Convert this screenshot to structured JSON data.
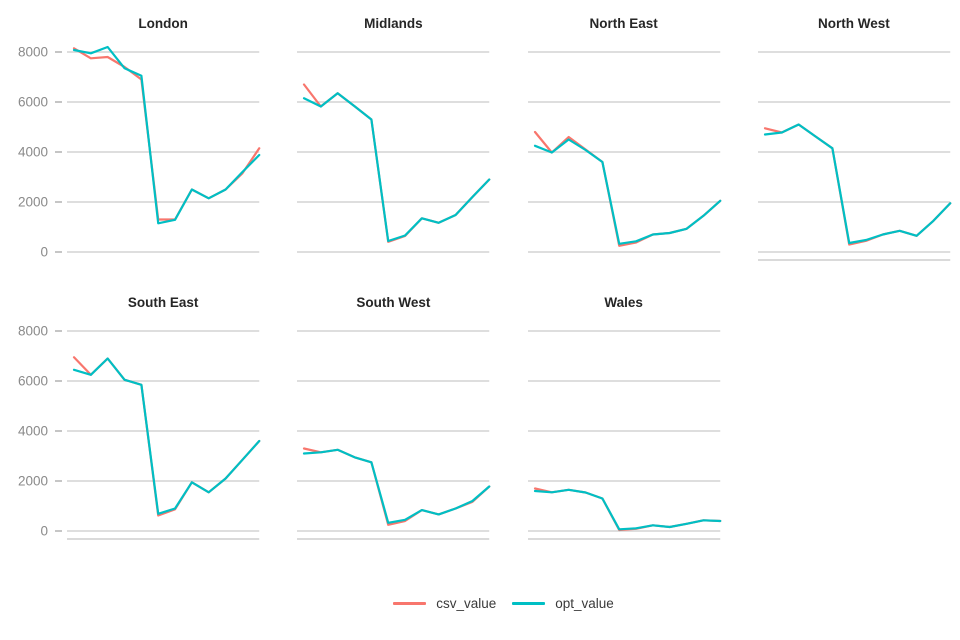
{
  "colors": {
    "background": "#ffffff",
    "grid": "#d9d9d9",
    "axis_line": "#d4d4d4",
    "tick": "#bfbfbf",
    "axis_label": "#8a8a8a",
    "title": "#262626",
    "legend_text": "#3a3a3a",
    "series": {
      "csv_value": "#F8766D",
      "opt_value": "#00BFC4"
    }
  },
  "y_axis": {
    "tick_labels": [
      "8000",
      "6000",
      "4000",
      "2000",
      "0"
    ],
    "tick_values": [
      8000,
      6000,
      4000,
      2000,
      0
    ]
  },
  "legend": {
    "items": [
      {
        "label": "csv_value"
      },
      {
        "label": "opt_value"
      }
    ]
  },
  "chart_data": {
    "type": "line",
    "layout": "facet-grid-2x4",
    "x_count": 12,
    "x_labels": [],
    "ylim": [
      0,
      8000
    ],
    "yticks": [
      8000,
      6000,
      4000,
      2000,
      0
    ],
    "grid": "horizontal-only",
    "legend_position": "bottom",
    "facets": [
      {
        "title": "London",
        "x_axis_line": false,
        "series": [
          {
            "name": "csv_value",
            "values": [
              8150,
              7750,
              7800,
              7400,
              6900,
              1300,
              1300,
              2500,
              2150,
              2500,
              3150,
              4150
            ]
          },
          {
            "name": "opt_value",
            "values": [
              8080,
              7950,
              8200,
              7350,
              7050,
              1150,
              1290,
              2500,
              2150,
              2500,
              3200,
              3880
            ]
          }
        ]
      },
      {
        "title": "Midlands",
        "x_axis_line": false,
        "series": [
          {
            "name": "csv_value",
            "values": [
              6700,
              5820,
              6350,
              5830,
              5300,
              410,
              640,
              1350,
              1170,
              1480,
              2200,
              2900
            ]
          },
          {
            "name": "opt_value",
            "values": [
              6150,
              5820,
              6350,
              5830,
              5300,
              440,
              660,
              1350,
              1170,
              1480,
              2200,
              2900
            ]
          }
        ]
      },
      {
        "title": "North East",
        "x_axis_line": false,
        "series": [
          {
            "name": "csv_value",
            "values": [
              4800,
              3980,
              4600,
              4100,
              3600,
              250,
              380,
              700,
              760,
              930,
              1450,
              2050
            ]
          },
          {
            "name": "opt_value",
            "values": [
              4250,
              3980,
              4500,
              4080,
              3600,
              330,
              430,
              700,
              760,
              930,
              1450,
              2050
            ]
          }
        ]
      },
      {
        "title": "North West",
        "x_axis_line": true,
        "series": [
          {
            "name": "csv_value",
            "values": [
              4950,
              4780,
              5100,
              4620,
              4150,
              300,
              450,
              700,
              850,
              650,
              1250,
              1950
            ]
          },
          {
            "name": "opt_value",
            "values": [
              4700,
              4780,
              5100,
              4620,
              4150,
              360,
              480,
              700,
              850,
              650,
              1250,
              1950
            ]
          }
        ]
      },
      {
        "title": "South East",
        "x_axis_line": true,
        "series": [
          {
            "name": "csv_value",
            "values": [
              6950,
              6250,
              6900,
              6050,
              5850,
              620,
              870,
              1950,
              1550,
              2100,
              2850,
              3600
            ]
          },
          {
            "name": "opt_value",
            "values": [
              6450,
              6250,
              6900,
              6050,
              5850,
              690,
              900,
              1950,
              1550,
              2100,
              2850,
              3600
            ]
          }
        ]
      },
      {
        "title": "South West",
        "x_axis_line": true,
        "series": [
          {
            "name": "csv_value",
            "values": [
              3300,
              3150,
              3250,
              2950,
              2750,
              250,
              400,
              835,
              665,
              900,
              1170,
              1780
            ]
          },
          {
            "name": "opt_value",
            "values": [
              3100,
              3150,
              3250,
              2950,
              2750,
              330,
              450,
              835,
              665,
              900,
              1200,
              1780
            ]
          }
        ]
      },
      {
        "title": "Wales",
        "x_axis_line": true,
        "series": [
          {
            "name": "csv_value",
            "values": [
              1700,
              1550,
              1650,
              1540,
              1300,
              40,
              90,
              230,
              160,
              290,
              430,
              400
            ]
          },
          {
            "name": "opt_value",
            "values": [
              1600,
              1550,
              1650,
              1540,
              1300,
              70,
              110,
              230,
              160,
              290,
              430,
              400
            ]
          }
        ]
      }
    ]
  }
}
